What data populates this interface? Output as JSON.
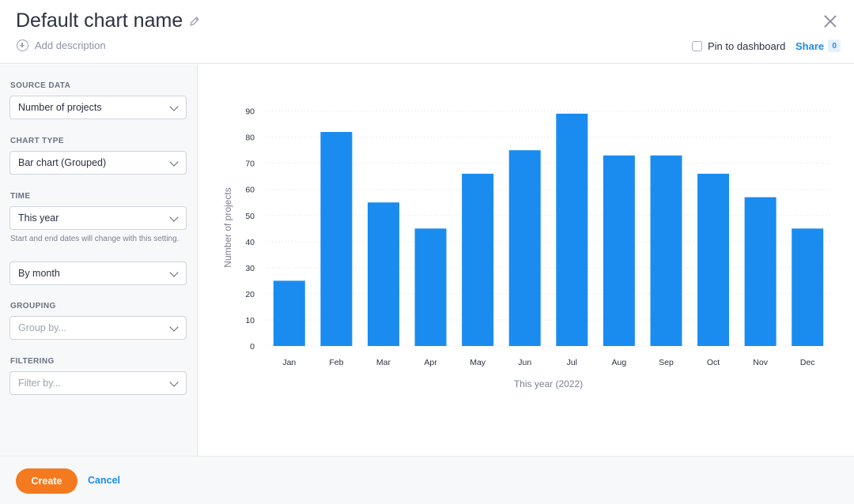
{
  "header": {
    "title": "Default chart name",
    "add_description": "Add description",
    "pin_label": "Pin to dashboard",
    "pin_checked": false,
    "share_label": "Share",
    "share_count": "0"
  },
  "sidebar": {
    "source_data": {
      "label": "SOURCE DATA",
      "value": "Number of projects"
    },
    "chart_type": {
      "label": "CHART TYPE",
      "value": "Bar chart (Grouped)"
    },
    "time": {
      "label": "TIME",
      "value": "This year",
      "helper": "Start and end dates will change with this setting.",
      "interval": "By month"
    },
    "grouping": {
      "label": "GROUPING",
      "placeholder": "Group by..."
    },
    "filtering": {
      "label": "FILTERING",
      "placeholder": "Filter by..."
    }
  },
  "footer": {
    "create_label": "Create",
    "cancel_label": "Cancel"
  },
  "colors": {
    "accent": "#1a8cf0",
    "bar": "#1a8cf0",
    "create_button": "#f47a1f"
  },
  "chart_data": {
    "type": "bar",
    "categories": [
      "Jan",
      "Feb",
      "Mar",
      "Apr",
      "May",
      "Jun",
      "Jul",
      "Aug",
      "Sep",
      "Oct",
      "Nov",
      "Dec"
    ],
    "values": [
      25,
      82,
      55,
      45,
      66,
      75,
      89,
      73,
      73,
      66,
      57,
      45
    ],
    "yticks": [
      0,
      10,
      20,
      30,
      40,
      50,
      60,
      70,
      80,
      90
    ],
    "ylim": [
      0,
      92
    ],
    "xlabel": "This year (2022)",
    "ylabel": "Number of projects",
    "grid": true
  }
}
